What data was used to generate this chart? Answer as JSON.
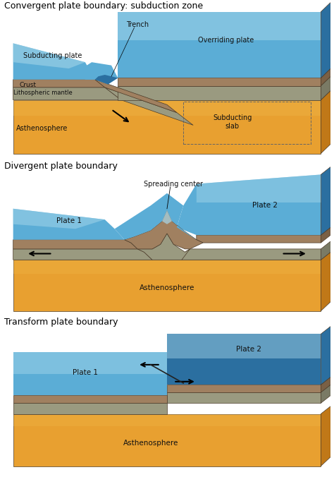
{
  "bg_color": "#ffffff",
  "title1": "Convergent plate boundary: subduction zone",
  "title2": "Divergent plate boundary",
  "title3": "Transform plate boundary",
  "title_fontsize": 9.5,
  "label_fontsize": 7.5,
  "colors": {
    "ocean_top": "#A8D8EA",
    "ocean_mid": "#5BADD6",
    "ocean_deep": "#3D8EC4",
    "ocean_dark": "#2B6FA0",
    "crust_top": "#A08060",
    "crust_side": "#7A6045",
    "mantle_top": "#9A9A80",
    "mantle_side": "#7A7A65",
    "asth_top": "#E8A030",
    "asth_light": "#F0B84A",
    "asth_side": "#C07818",
    "asth_dark": "#B06010",
    "edge": "#4A3A28",
    "text": "#111111"
  }
}
